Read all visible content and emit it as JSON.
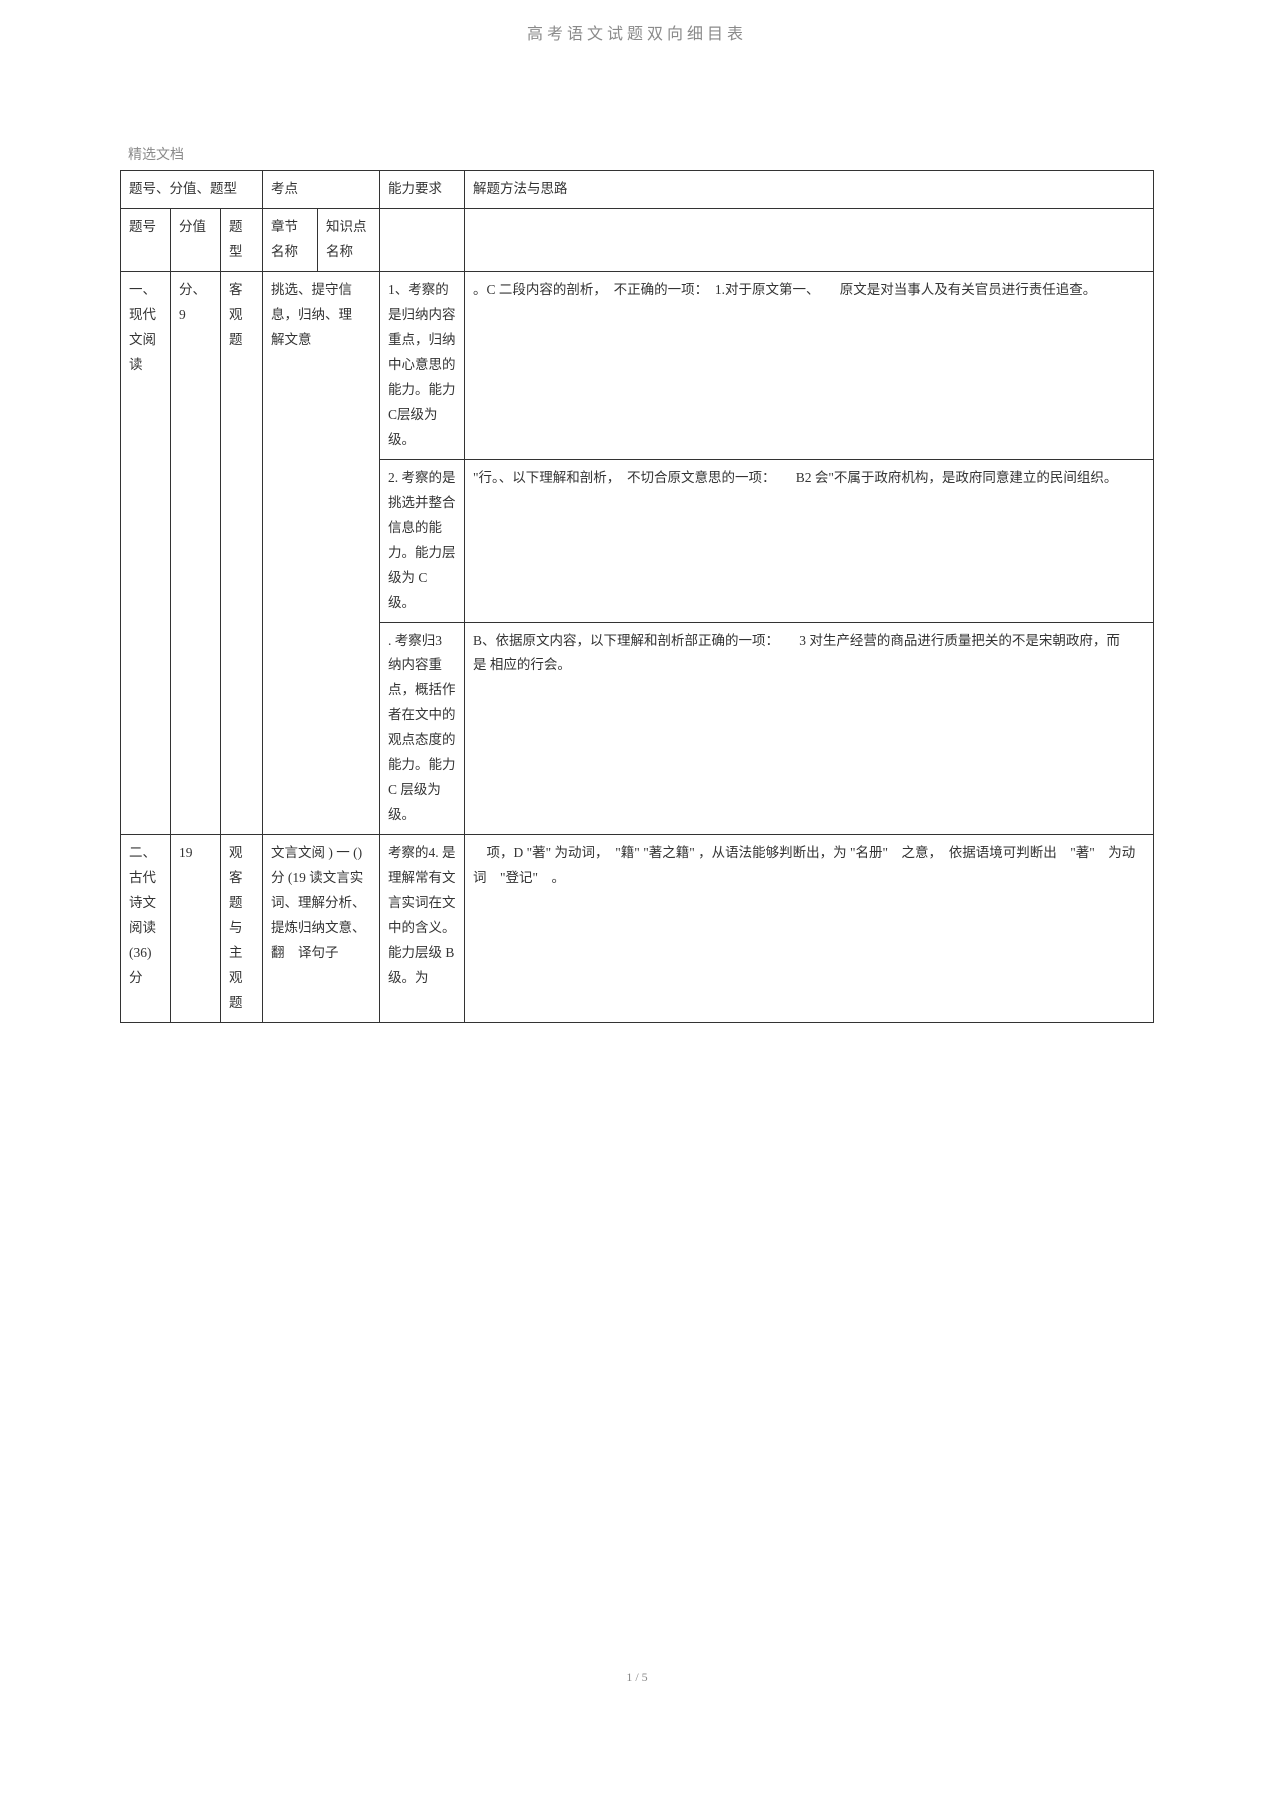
{
  "header": {
    "title": "高考语文试题双向细目表",
    "subtitle": "精选文档"
  },
  "table": {
    "colgroup_headers": {
      "tihao_group": "题号、分值、题型",
      "kaodian_group": "考点",
      "nengli": "能力要求",
      "jieti": "解题方法与思路"
    },
    "sub_headers": {
      "tihao": "题号",
      "fenzhi": "分值",
      "tixing": "题型",
      "zhangjie": "章节名称",
      "zhishi": "知识点 名称"
    },
    "rows": [
      {
        "tihao": "一、现代文阅读",
        "fenzhi": "分、9",
        "tixing": "客观题",
        "kaodian_merged": "挑选、提守信息，归纳、理　解文意",
        "nengli": "1、考察的是归纳内容重点，归纳中心意思的能力。能力 C层级为级。",
        "jieti": "。C 二段内容的剖析，　不正确的一项：　1.对于原文第一、　　原文是对当事人及有关官员进行责任追查。"
      },
      {
        "nengli": "2. 考察的是挑选并整合信息的能力。能力层级为 C 级。",
        "jieti": "\"行。、以下理解和剖析，　不切合原文意思的一项：　　B2 会\"不属于政府机构，是政府同意建立的民间组织。"
      },
      {
        "nengli": ". 考察归3 纳内容重点，概括作者在文中的观点态度的能力。能力 C 层级为 级。",
        "jieti": "B、依据原文内容，以下理解和剖析部正确的一项：　　3 对生产经营的商品进行质量把关的不是宋朝政府，而　　　是 相应的行会。"
      },
      {
        "tihao": "二、古代诗文阅读 (36) 分",
        "fenzhi": "19",
        "tixing": "观客题与主观题",
        "kaodian_merged": "文言文阅 ) 一 ()分 (19 读文言实词、理解分析、提炼归纳文意、翻　译句子",
        "nengli": "考察的4. 是理解常有文言实词在文中的含义。能力层级 B级。为",
        "jieti": "　项，D \"著\" 为动词，　\"籍\" \"著之籍\" ，从语法能够判断出，为 \"名册\"　之意，　依据语境可判断出　\"著\"　为动词　\"登记\"　。"
      }
    ]
  },
  "footer": {
    "page": "1 / 5"
  },
  "styling": {
    "text_color": "#333333",
    "header_color": "#8a8a8a",
    "border_color": "#333333",
    "background": "#ffffff",
    "font_family": "SimSun",
    "base_font_size": 14,
    "line_height": 1.85
  }
}
